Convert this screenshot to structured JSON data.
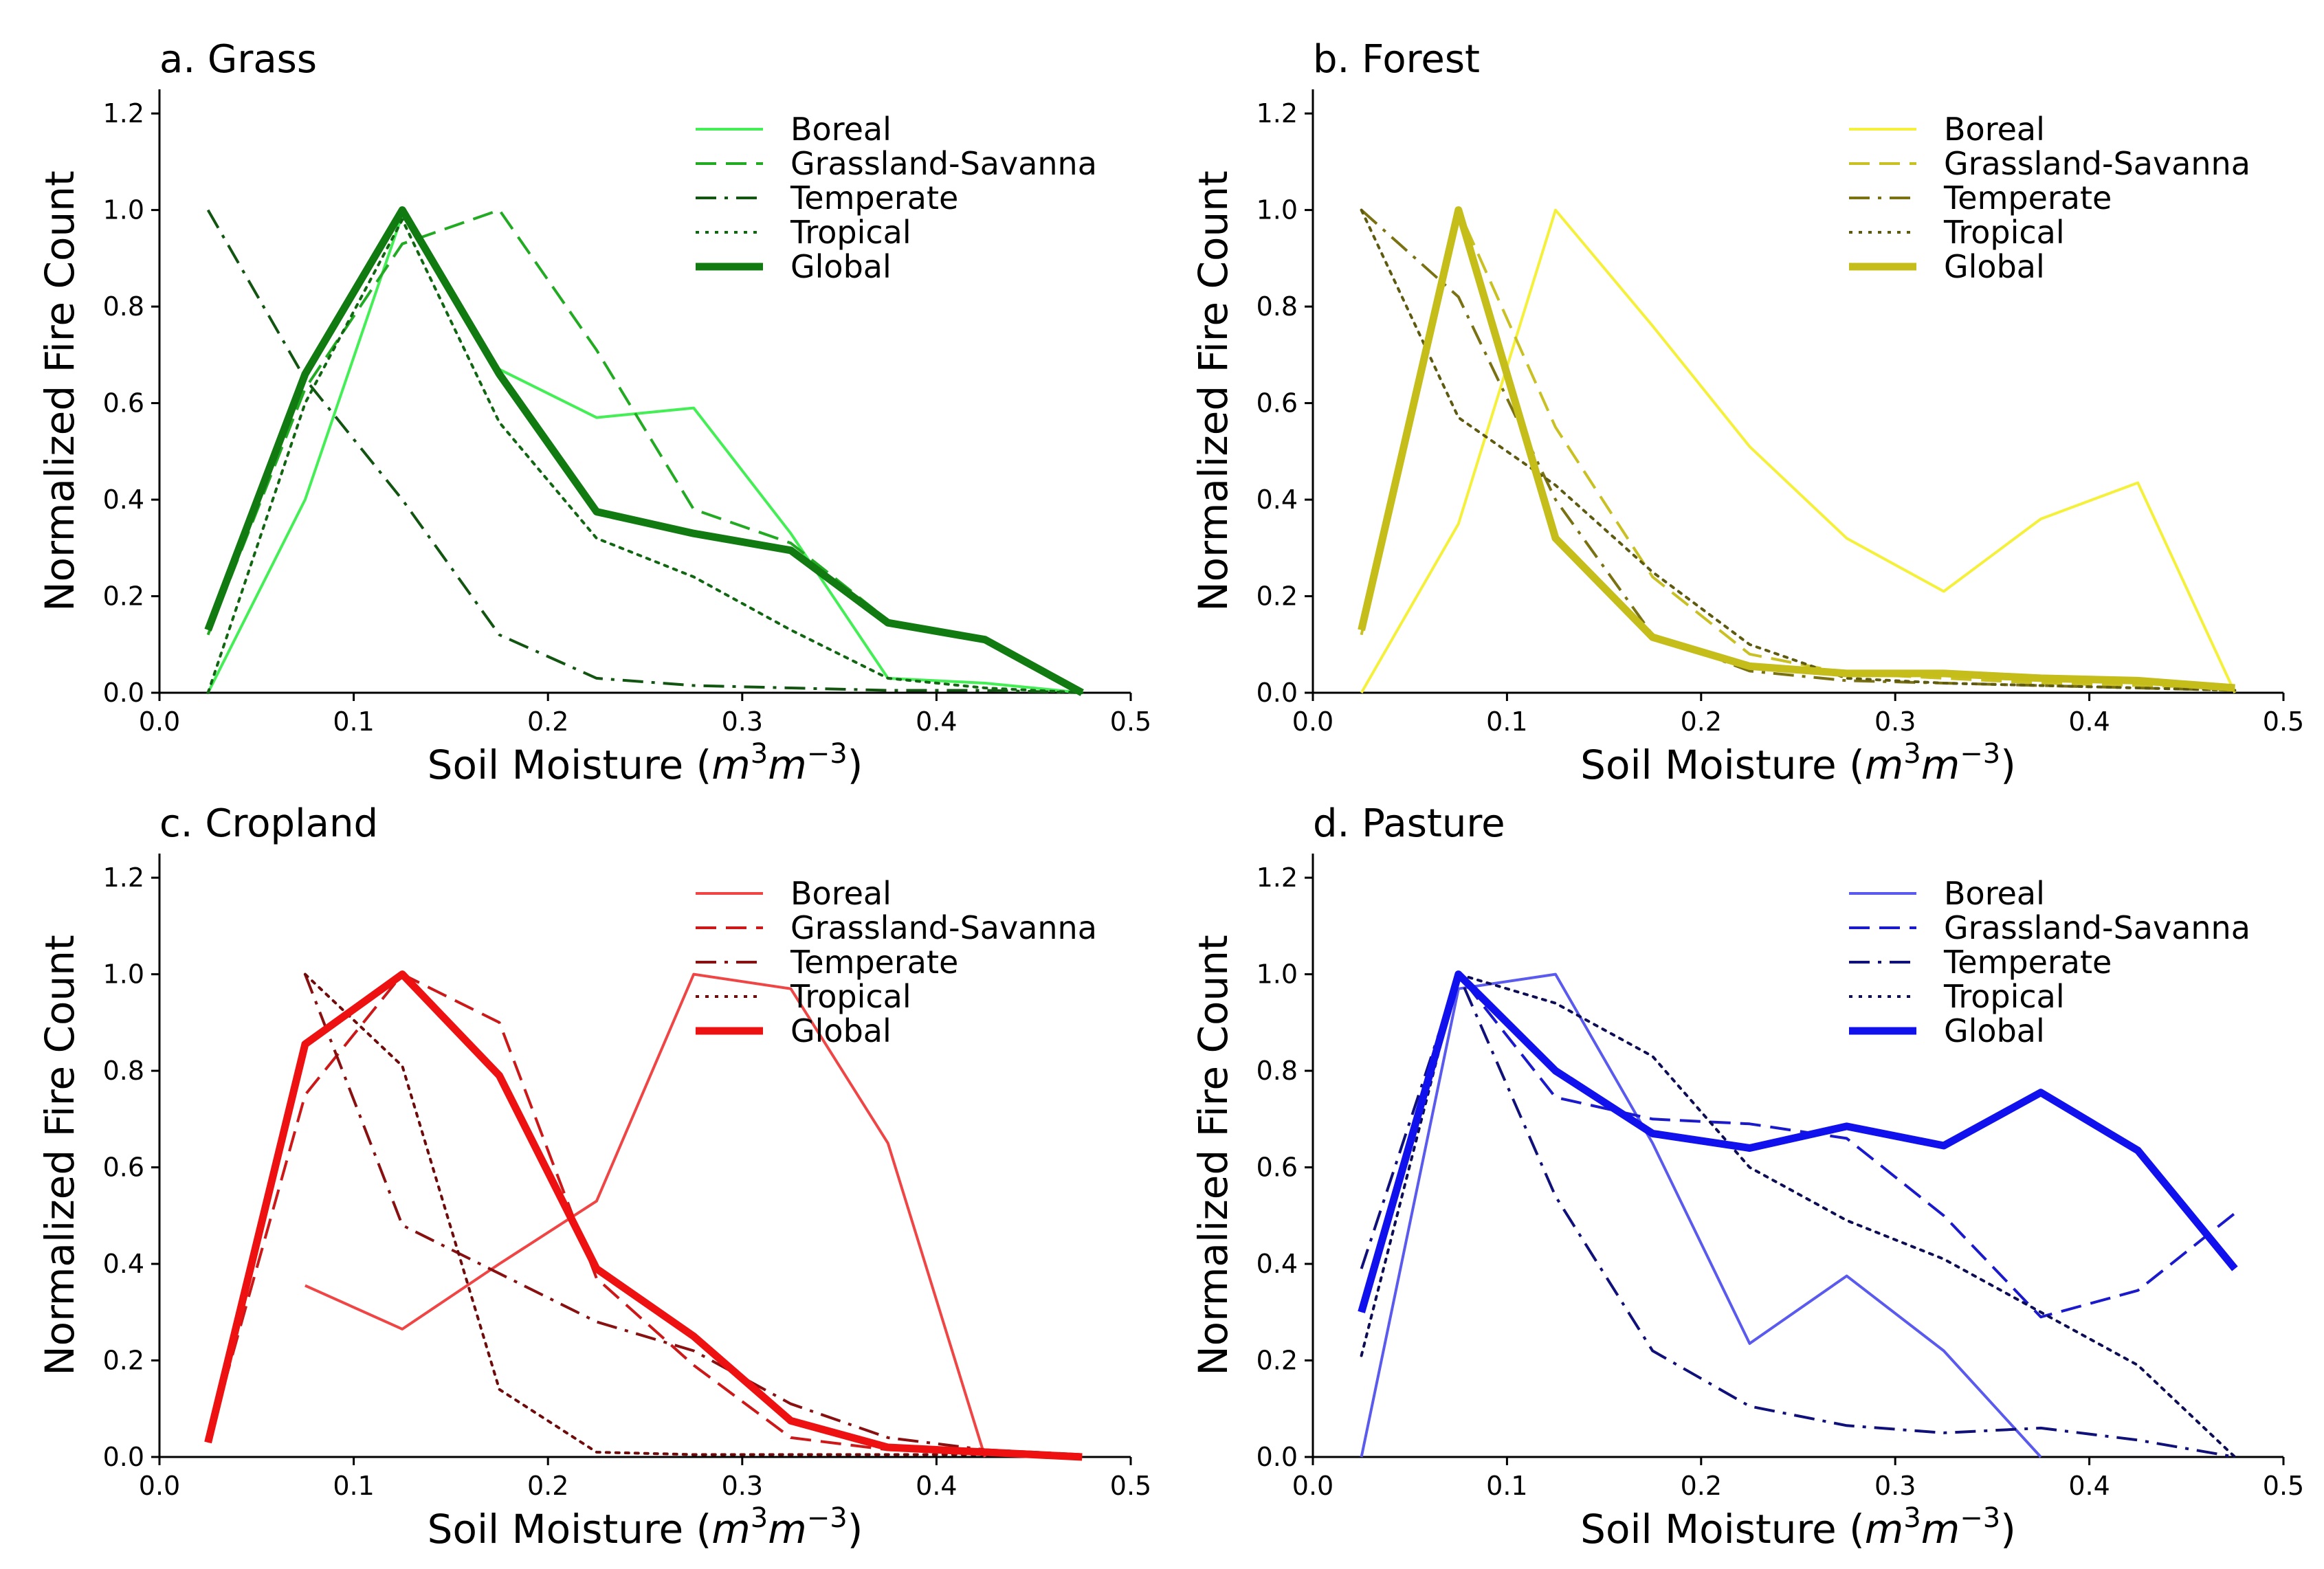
{
  "figure": {
    "xlabel_main": "Soil Moisture (",
    "xlabel_math": "m",
    "xlabel_sup1": "3",
    "xlabel_math2": "m",
    "xlabel_sup2": "−3",
    "xlabel_close": ")",
    "ylabel": "Normalized Fire Count"
  },
  "chart_data": [
    {
      "type": "line",
      "title": "a. Grass",
      "xlabel": "Soil Moisture (m3m-3)",
      "ylabel": "Normalized Fire Count",
      "xlim": [
        0.0,
        0.5
      ],
      "ylim": [
        0.0,
        1.25
      ],
      "xticks": [
        "0.0",
        "0.1",
        "0.2",
        "0.3",
        "0.4",
        "0.5"
      ],
      "yticks": [
        "0.0",
        "0.2",
        "0.4",
        "0.6",
        "0.8",
        "1.0",
        "1.2"
      ],
      "legend_position": "top-right",
      "series": [
        {
          "name": "Boreal",
          "style": "solid",
          "color": "#44ee55",
          "width": 4,
          "points": [
            [
              0.025,
              0.0
            ],
            [
              0.075,
              0.4
            ],
            [
              0.125,
              0.99
            ],
            [
              0.175,
              0.67
            ],
            [
              0.225,
              0.57
            ],
            [
              0.275,
              0.59
            ],
            [
              0.325,
              0.33
            ],
            [
              0.375,
              0.03
            ],
            [
              0.425,
              0.02
            ],
            [
              0.475,
              0.0
            ]
          ]
        },
        {
          "name": "Grassland-Savanna",
          "style": "dashed",
          "color": "#22aa22",
          "width": 4,
          "points": [
            [
              0.025,
              0.12
            ],
            [
              0.075,
              0.63
            ],
            [
              0.125,
              0.93
            ],
            [
              0.175,
              1.0
            ],
            [
              0.225,
              0.71
            ],
            [
              0.275,
              0.38
            ],
            [
              0.325,
              0.31
            ],
            [
              0.375,
              0.15
            ],
            [
              0.425,
              0.11
            ],
            [
              0.475,
              0.0
            ]
          ]
        },
        {
          "name": "Temperate",
          "style": "dashdot",
          "color": "#115511",
          "width": 4,
          "points": [
            [
              0.025,
              1.0
            ],
            [
              0.075,
              0.65
            ],
            [
              0.125,
              0.4
            ],
            [
              0.175,
              0.12
            ],
            [
              0.225,
              0.03
            ],
            [
              0.275,
              0.015
            ],
            [
              0.325,
              0.01
            ],
            [
              0.375,
              0.005
            ],
            [
              0.425,
              0.005
            ],
            [
              0.475,
              0.0
            ]
          ]
        },
        {
          "name": "Tropical",
          "style": "dotted",
          "color": "#116611",
          "width": 4,
          "points": [
            [
              0.025,
              0.0
            ],
            [
              0.075,
              0.6
            ],
            [
              0.125,
              0.98
            ],
            [
              0.175,
              0.56
            ],
            [
              0.225,
              0.32
            ],
            [
              0.275,
              0.24
            ],
            [
              0.325,
              0.13
            ],
            [
              0.375,
              0.03
            ],
            [
              0.425,
              0.01
            ],
            [
              0.475,
              0.0
            ]
          ]
        },
        {
          "name": "Global",
          "style": "solid",
          "color": "#117a11",
          "width": 11,
          "points": [
            [
              0.025,
              0.13
            ],
            [
              0.075,
              0.66
            ],
            [
              0.125,
              1.0
            ],
            [
              0.175,
              0.66
            ],
            [
              0.225,
              0.375
            ],
            [
              0.275,
              0.33
            ],
            [
              0.325,
              0.295
            ],
            [
              0.375,
              0.145
            ],
            [
              0.425,
              0.11
            ],
            [
              0.475,
              0.0
            ]
          ]
        }
      ]
    },
    {
      "type": "line",
      "title": "b. Forest",
      "xlabel": "Soil Moisture (m3m-3)",
      "ylabel": "Normalized Fire Count",
      "xlim": [
        0.0,
        0.5
      ],
      "ylim": [
        0.0,
        1.25
      ],
      "xticks": [
        "0.0",
        "0.1",
        "0.2",
        "0.3",
        "0.4",
        "0.5"
      ],
      "yticks": [
        "0.0",
        "0.2",
        "0.4",
        "0.6",
        "0.8",
        "1.0",
        "1.2"
      ],
      "legend_position": "top-right",
      "series": [
        {
          "name": "Boreal",
          "style": "solid",
          "color": "#f5f03a",
          "width": 4,
          "points": [
            [
              0.025,
              0.0
            ],
            [
              0.075,
              0.35
            ],
            [
              0.125,
              1.0
            ],
            [
              0.175,
              0.76
            ],
            [
              0.225,
              0.51
            ],
            [
              0.275,
              0.32
            ],
            [
              0.325,
              0.21
            ],
            [
              0.375,
              0.36
            ],
            [
              0.425,
              0.435
            ],
            [
              0.475,
              0.0
            ]
          ]
        },
        {
          "name": "Grassland-Savanna",
          "style": "dashed",
          "color": "#c9c023",
          "width": 4,
          "points": [
            [
              0.025,
              0.12
            ],
            [
              0.075,
              1.0
            ],
            [
              0.125,
              0.55
            ],
            [
              0.175,
              0.24
            ],
            [
              0.225,
              0.08
            ],
            [
              0.275,
              0.04
            ],
            [
              0.325,
              0.03
            ],
            [
              0.375,
              0.02
            ],
            [
              0.425,
              0.015
            ],
            [
              0.475,
              0.01
            ]
          ]
        },
        {
          "name": "Temperate",
          "style": "dashdot",
          "color": "#7a7212",
          "width": 4,
          "points": [
            [
              0.025,
              1.0
            ],
            [
              0.075,
              0.82
            ],
            [
              0.125,
              0.4
            ],
            [
              0.175,
              0.12
            ],
            [
              0.225,
              0.045
            ],
            [
              0.275,
              0.025
            ],
            [
              0.325,
              0.02
            ],
            [
              0.375,
              0.015
            ],
            [
              0.425,
              0.01
            ],
            [
              0.475,
              0.005
            ]
          ]
        },
        {
          "name": "Tropical",
          "style": "dotted",
          "color": "#5e5a10",
          "width": 4,
          "points": [
            [
              0.025,
              1.0
            ],
            [
              0.075,
              0.57
            ],
            [
              0.125,
              0.43
            ],
            [
              0.175,
              0.25
            ],
            [
              0.225,
              0.1
            ],
            [
              0.275,
              0.03
            ],
            [
              0.325,
              0.02
            ],
            [
              0.375,
              0.015
            ],
            [
              0.425,
              0.01
            ],
            [
              0.475,
              0.005
            ]
          ]
        },
        {
          "name": "Global",
          "style": "solid",
          "color": "#c4bd1a",
          "width": 11,
          "points": [
            [
              0.025,
              0.13
            ],
            [
              0.075,
              1.0
            ],
            [
              0.125,
              0.32
            ],
            [
              0.175,
              0.115
            ],
            [
              0.225,
              0.055
            ],
            [
              0.275,
              0.04
            ],
            [
              0.325,
              0.04
            ],
            [
              0.375,
              0.03
            ],
            [
              0.425,
              0.025
            ],
            [
              0.475,
              0.01
            ]
          ]
        }
      ]
    },
    {
      "type": "line",
      "title": "c. Cropland",
      "xlabel": "Soil Moisture (m3m-3)",
      "ylabel": "Normalized Fire Count",
      "xlim": [
        0.0,
        0.5
      ],
      "ylim": [
        0.0,
        1.25
      ],
      "xticks": [
        "0.0",
        "0.1",
        "0.2",
        "0.3",
        "0.4",
        "0.5"
      ],
      "yticks": [
        "0.0",
        "0.2",
        "0.4",
        "0.6",
        "0.8",
        "1.0",
        "1.2"
      ],
      "legend_position": "top-right",
      "series": [
        {
          "name": "Boreal",
          "style": "solid",
          "color": "#f04545",
          "width": 4,
          "points": [
            [
              0.075,
              0.355
            ],
            [
              0.125,
              0.265
            ],
            [
              0.175,
              0.4
            ],
            [
              0.225,
              0.53
            ],
            [
              0.275,
              1.0
            ],
            [
              0.325,
              0.97
            ],
            [
              0.375,
              0.65
            ],
            [
              0.425,
              0.0
            ]
          ]
        },
        {
          "name": "Grassland-Savanna",
          "style": "dashed",
          "color": "#cc1818",
          "width": 4,
          "points": [
            [
              0.025,
              0.03
            ],
            [
              0.075,
              0.75
            ],
            [
              0.125,
              1.0
            ],
            [
              0.175,
              0.9
            ],
            [
              0.225,
              0.37
            ],
            [
              0.275,
              0.19
            ],
            [
              0.325,
              0.04
            ],
            [
              0.375,
              0.015
            ],
            [
              0.425,
              0.01
            ],
            [
              0.475,
              0.0
            ]
          ]
        },
        {
          "name": "Temperate",
          "style": "dashdot",
          "color": "#881010",
          "width": 4,
          "points": [
            [
              0.075,
              1.0
            ],
            [
              0.125,
              0.48
            ],
            [
              0.175,
              0.38
            ],
            [
              0.225,
              0.28
            ],
            [
              0.275,
              0.22
            ],
            [
              0.325,
              0.11
            ],
            [
              0.375,
              0.04
            ],
            [
              0.425,
              0.015
            ],
            [
              0.475,
              0.005
            ]
          ]
        },
        {
          "name": "Tropical",
          "style": "dotted",
          "color": "#6e0a0a",
          "width": 4,
          "points": [
            [
              0.075,
              1.0
            ],
            [
              0.125,
              0.81
            ],
            [
              0.175,
              0.14
            ],
            [
              0.225,
              0.01
            ],
            [
              0.275,
              0.005
            ],
            [
              0.325,
              0.005
            ],
            [
              0.375,
              0.005
            ],
            [
              0.425,
              0.005
            ],
            [
              0.475,
              0.0
            ]
          ]
        },
        {
          "name": "Global",
          "style": "solid",
          "color": "#ee1111",
          "width": 11,
          "points": [
            [
              0.025,
              0.03
            ],
            [
              0.075,
              0.855
            ],
            [
              0.125,
              1.0
            ],
            [
              0.175,
              0.79
            ],
            [
              0.225,
              0.39
            ],
            [
              0.275,
              0.25
            ],
            [
              0.325,
              0.075
            ],
            [
              0.375,
              0.02
            ],
            [
              0.425,
              0.01
            ],
            [
              0.475,
              0.0
            ]
          ]
        }
      ]
    },
    {
      "type": "line",
      "title": "d. Pasture",
      "xlabel": "Soil Moisture (m3m-3)",
      "ylabel": "Normalized Fire Count",
      "xlim": [
        0.0,
        0.5
      ],
      "ylim": [
        0.0,
        1.25
      ],
      "xticks": [
        "0.0",
        "0.1",
        "0.2",
        "0.3",
        "0.4",
        "0.5"
      ],
      "yticks": [
        "0.0",
        "0.2",
        "0.4",
        "0.6",
        "0.8",
        "1.0",
        "1.2"
      ],
      "legend_position": "top-right",
      "series": [
        {
          "name": "Boreal",
          "style": "solid",
          "color": "#5a5aee",
          "width": 4,
          "points": [
            [
              0.025,
              0.0
            ],
            [
              0.075,
              0.97
            ],
            [
              0.125,
              1.0
            ],
            [
              0.175,
              0.65
            ],
            [
              0.225,
              0.235
            ],
            [
              0.275,
              0.375
            ],
            [
              0.325,
              0.22
            ],
            [
              0.375,
              0.0
            ]
          ]
        },
        {
          "name": "Grassland-Savanna",
          "style": "dashed",
          "color": "#1a1acc",
          "width": 4,
          "points": [
            [
              0.025,
              0.3
            ],
            [
              0.075,
              1.0
            ],
            [
              0.125,
              0.745
            ],
            [
              0.175,
              0.7
            ],
            [
              0.225,
              0.69
            ],
            [
              0.275,
              0.66
            ],
            [
              0.325,
              0.5
            ],
            [
              0.375,
              0.29
            ],
            [
              0.425,
              0.345
            ],
            [
              0.475,
              0.505
            ]
          ]
        },
        {
          "name": "Temperate",
          "style": "dashdot",
          "color": "#10107a",
          "width": 4,
          "points": [
            [
              0.025,
              0.39
            ],
            [
              0.075,
              1.0
            ],
            [
              0.125,
              0.54
            ],
            [
              0.175,
              0.22
            ],
            [
              0.225,
              0.105
            ],
            [
              0.275,
              0.065
            ],
            [
              0.325,
              0.05
            ],
            [
              0.375,
              0.06
            ],
            [
              0.425,
              0.035
            ],
            [
              0.475,
              0.0
            ]
          ]
        },
        {
          "name": "Tropical",
          "style": "dotted",
          "color": "#0d0d55",
          "width": 4,
          "points": [
            [
              0.025,
              0.21
            ],
            [
              0.075,
              1.0
            ],
            [
              0.125,
              0.94
            ],
            [
              0.175,
              0.83
            ],
            [
              0.225,
              0.6
            ],
            [
              0.275,
              0.49
            ],
            [
              0.325,
              0.41
            ],
            [
              0.375,
              0.3
            ],
            [
              0.425,
              0.19
            ],
            [
              0.475,
              0.0
            ]
          ]
        },
        {
          "name": "Global",
          "style": "solid",
          "color": "#1111ee",
          "width": 11,
          "points": [
            [
              0.025,
              0.3
            ],
            [
              0.075,
              1.0
            ],
            [
              0.125,
              0.8
            ],
            [
              0.175,
              0.67
            ],
            [
              0.225,
              0.64
            ],
            [
              0.275,
              0.685
            ],
            [
              0.325,
              0.645
            ],
            [
              0.375,
              0.755
            ],
            [
              0.425,
              0.635
            ],
            [
              0.475,
              0.39
            ]
          ]
        }
      ]
    }
  ]
}
